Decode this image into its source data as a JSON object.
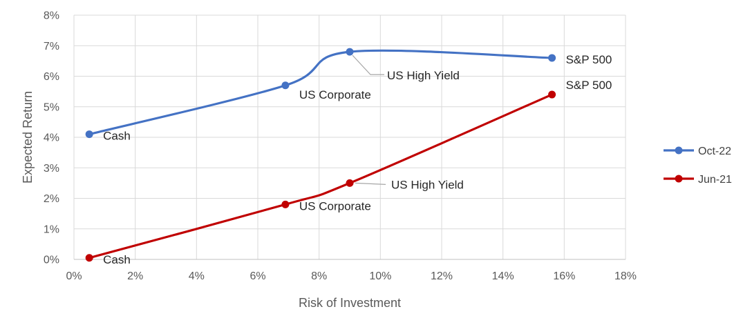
{
  "chart_data": {
    "type": "line",
    "xlabel": "Risk of Investment",
    "ylabel": "Expected Return",
    "xlim": [
      0,
      18
    ],
    "ylim": [
      0,
      8
    ],
    "x_ticks": [
      "0%",
      "2%",
      "4%",
      "6%",
      "8%",
      "10%",
      "12%",
      "14%",
      "16%",
      "18%"
    ],
    "y_ticks": [
      "0%",
      "1%",
      "2%",
      "3%",
      "4%",
      "5%",
      "6%",
      "7%",
      "8%"
    ],
    "grid": true,
    "legend_position": "right",
    "series": [
      {
        "name": "Oct-22",
        "color": "#4472C4",
        "points": [
          {
            "label": "Cash",
            "x": 0.5,
            "y": 4.1
          },
          {
            "label": "US Corporate",
            "x": 6.9,
            "y": 5.7
          },
          {
            "label": "US High Yield",
            "x": 9.0,
            "y": 6.8
          },
          {
            "label": "S&P 500",
            "x": 15.6,
            "y": 6.6
          }
        ]
      },
      {
        "name": "Jun-21",
        "color": "#C00000",
        "points": [
          {
            "label": "Cash",
            "x": 0.5,
            "y": 0.05
          },
          {
            "label": "US Corporate",
            "x": 6.9,
            "y": 1.8
          },
          {
            "label": "US High Yield",
            "x": 9.0,
            "y": 2.5
          },
          {
            "label": "S&P 500",
            "x": 15.6,
            "y": 5.4
          }
        ]
      }
    ]
  }
}
